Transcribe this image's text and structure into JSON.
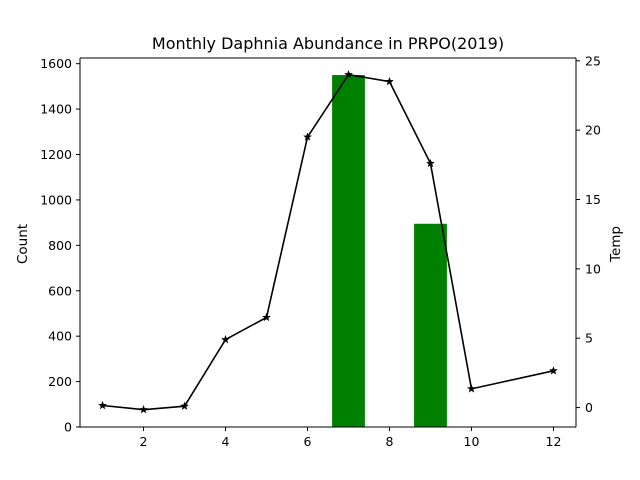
{
  "chart_data": {
    "type": "bar",
    "title": "Monthly Daphnia Abundance in PRPO(2019)",
    "xlabel": "",
    "ylabel": "Count",
    "y2label": "Temp",
    "xlim": [
      0.45,
      12.55
    ],
    "ylim": [
      0,
      1625
    ],
    "y2lim": [
      -1.4,
      25.2
    ],
    "x_ticks": [
      2,
      4,
      6,
      8,
      10,
      12
    ],
    "y_ticks": [
      0,
      200,
      400,
      600,
      800,
      1000,
      1200,
      1400,
      1600
    ],
    "y2_ticks": [
      0,
      5,
      10,
      15,
      20,
      25
    ],
    "grid": false,
    "bar_color": "#008000",
    "line_color": "#000000",
    "bar_series": {
      "axis": "left",
      "bar_width": 0.8,
      "x": [
        7,
        9
      ],
      "values": [
        1550,
        895
      ]
    },
    "line_series": {
      "axis": "right",
      "marker": "star",
      "x": [
        1,
        2,
        3,
        4,
        5,
        6,
        7,
        8,
        9,
        10,
        12
      ],
      "values": [
        0.15,
        -0.15,
        0.1,
        4.9,
        6.5,
        19.5,
        24.0,
        23.5,
        17.6,
        1.35,
        2.65
      ]
    }
  }
}
